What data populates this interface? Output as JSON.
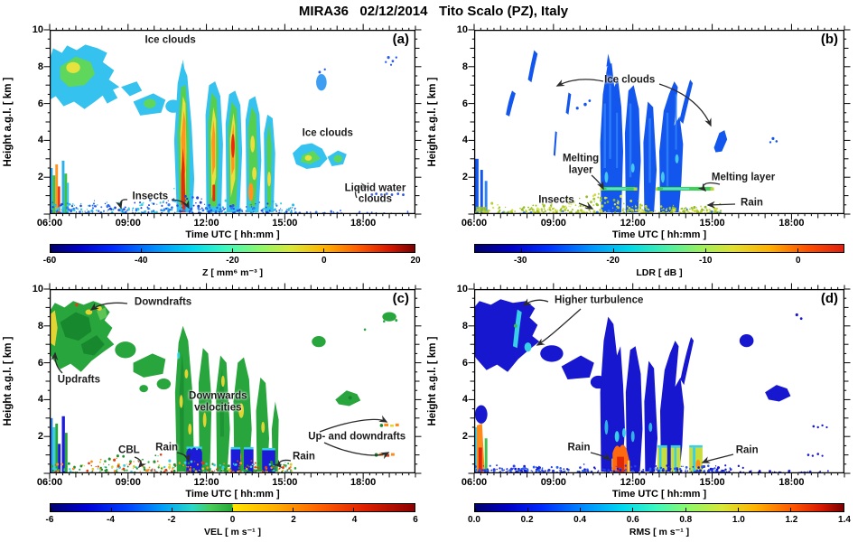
{
  "title": "MIRA36   02/12/2014   Tito Scalo (PZ), Italy",
  "chart_data": [
    {
      "panel": "(a)",
      "type": "heatmap",
      "variable": "radar reflectivity factor Z",
      "xlabel": "Time UTC [ hh:mm ]",
      "ylabel": "Height a.g.l. [ km ]",
      "x_ticks": [
        "06:00",
        "09:00",
        "12:00",
        "15:00",
        "18:00"
      ],
      "x_range_hours": [
        6,
        20
      ],
      "y_ticks": [
        "10",
        "8",
        "6",
        "4",
        "2"
      ],
      "y_range_km": [
        0,
        10
      ],
      "colorbar": {
        "label": "Z [ mm⁶ m⁻³ ]",
        "tick_labels": [
          "-60",
          "-40",
          "-20",
          "0",
          "20"
        ],
        "range": [
          -60,
          20
        ],
        "colormap": "jet"
      },
      "annotations": [
        "Ice clouds",
        "Ice clouds",
        "Insects",
        "Liquid water clouds"
      ],
      "features": [
        {
          "name": "ice clouds",
          "time_utc": "06:00-08:45",
          "height_km": [
            5.5,
            9.3
          ],
          "value_range": [
            -45,
            -15
          ]
        },
        {
          "name": "scattered ice cloud fragments",
          "time_utc": "08:45-10:50",
          "height_km": [
            4.5,
            7.0
          ],
          "value_range": [
            -45,
            -25
          ]
        },
        {
          "name": "deep precipitating cloud bands with strong cores",
          "time_utc": "10:50-14:45",
          "height_km": [
            0,
            8.0
          ],
          "value_range": [
            -40,
            15
          ]
        },
        {
          "name": "ice clouds",
          "time_utc": "15:15-17:30",
          "height_km": [
            3.0,
            5.2
          ],
          "value_range": [
            -45,
            -20
          ]
        },
        {
          "name": "insect layer",
          "time_utc": "06:00-15:15",
          "height_km": [
            0,
            0.9
          ],
          "value_range": [
            -58,
            -40
          ]
        },
        {
          "name": "liquid water clouds",
          "time_utc": "18:15-19:35",
          "height_km": [
            0.9,
            1.2
          ],
          "value_range": [
            -52,
            -42
          ]
        },
        {
          "name": "boundary-layer echoes",
          "time_utc": "06:00-06:40",
          "height_km": [
            0,
            2.8
          ],
          "value_range": [
            -45,
            0
          ]
        },
        {
          "name": "small high ice patches",
          "time_utc": "16:20-16:45 and 18:55-19:25",
          "height_km": [
            6.8,
            8.8
          ],
          "value_range": [
            -50,
            -35
          ]
        }
      ]
    },
    {
      "panel": "(b)",
      "type": "heatmap",
      "variable": "linear depolarization ratio LDR",
      "xlabel": "Time UTC [ hh:mm ]",
      "ylabel": "Height a.g.l. [ km ]",
      "x_ticks": [
        "06:00",
        "09:00",
        "12:00",
        "15:00",
        "18:00"
      ],
      "x_range_hours": [
        6,
        20
      ],
      "y_ticks": [
        "10",
        "8",
        "6",
        "4",
        "2"
      ],
      "y_range_km": [
        0,
        10
      ],
      "colorbar": {
        "label": "LDR [ dB ]",
        "tick_labels": [
          "-30",
          "-20",
          "-10",
          "0"
        ],
        "range": [
          -35,
          5
        ],
        "colormap": "jet"
      },
      "annotations": [
        "Ice clouds",
        "Melting layer",
        "Insects",
        "Melting layer",
        "Rain"
      ],
      "features": [
        {
          "name": "ice cloud streaks",
          "time_utc": "07:10-08:30",
          "height_km": [
            5.5,
            9.0
          ],
          "value_range": [
            -32,
            -25
          ]
        },
        {
          "name": "deep cloud and precipitation",
          "time_utc": "10:50-15:00",
          "height_km": [
            0,
            8.5
          ],
          "value_range": [
            -33,
            -25
          ]
        },
        {
          "name": "melting layer bright band",
          "time_utc": "11:00-12:05 and 13:00-15:00",
          "height_km": [
            1.2,
            1.5
          ],
          "value_range": [
            -20,
            -12
          ]
        },
        {
          "name": "insect layer",
          "time_utc": "06:00-15:15",
          "height_km": [
            0,
            0.7
          ],
          "value_range": [
            -14,
            -6
          ]
        },
        {
          "name": "rain below melting layer",
          "time_utc": "10:50-15:00",
          "height_km": [
            0,
            1.2
          ],
          "value_range": [
            -30,
            -25
          ]
        },
        {
          "name": "small ice patches",
          "time_utc": "15:25-15:55 and 17:15-17:35",
          "height_km": [
            3.4,
            4.8
          ],
          "value_range": [
            -30,
            -26
          ]
        }
      ]
    },
    {
      "panel": "(c)",
      "type": "heatmap",
      "variable": "Doppler velocity VEL",
      "xlabel": "Time UTC [ hh:mm ]",
      "ylabel": "Height a.g.l. [ km ]",
      "x_ticks": [
        "06:00",
        "09:00",
        "12:00",
        "15:00",
        "18:00"
      ],
      "x_range_hours": [
        6,
        20
      ],
      "y_ticks": [
        "10",
        "8",
        "6",
        "4",
        "2"
      ],
      "y_range_km": [
        0,
        10
      ],
      "colorbar": {
        "label": "VEL [ m s⁻¹ ]",
        "tick_labels": [
          "-6",
          "-4",
          "-2",
          "0",
          "2",
          "4",
          "6"
        ],
        "range": [
          -6,
          6
        ],
        "colormap": "jet-like, green below 0, orange above 0"
      },
      "annotations": [
        "Downdrafts",
        "Updrafts",
        "Downwards velocities",
        "CBL",
        "Rain",
        "Up- and downdrafts",
        "Rain"
      ],
      "features": [
        {
          "name": "downdrafts in ice cloud (green)",
          "time_utc": "06:00-08:45",
          "height_km": [
            5.5,
            9.3
          ],
          "value_range": [
            -2,
            -0.5
          ]
        },
        {
          "name": "updrafts at cloud edge (yellow)",
          "time_utc": "06:00-06:20",
          "height_km": [
            6.8,
            8.6
          ],
          "value_range": [
            0,
            1.5
          ]
        },
        {
          "name": "downwards velocities in cloud bands",
          "time_utc": "10:50-15:00",
          "height_km": [
            0,
            8.0
          ],
          "value_range": [
            -3,
            -0.5
          ]
        },
        {
          "name": "rain with strong fall velocities (blue)",
          "time_utc": "11:15-11:50 and 12:55-14:40",
          "height_km": [
            0,
            1.5
          ],
          "value_range": [
            -6,
            -4
          ]
        },
        {
          "name": "CBL convective plumes",
          "time_utc": "06:00-15:00",
          "height_km": [
            0,
            0.8
          ],
          "value_range": [
            -2,
            2
          ]
        },
        {
          "name": "up- and downdrafts in thin layers",
          "time_utc": "18:35-19:25",
          "height_km": [
            0.8,
            2.7
          ],
          "value_range": [
            -1,
            3
          ]
        }
      ]
    },
    {
      "panel": "(d)",
      "type": "heatmap",
      "variable": "Doppler spectral width RMS",
      "xlabel": "Time UTC [ hh:mm ]",
      "ylabel": "Height a.g.l. [ km ]",
      "x_ticks": [
        "06:00",
        "09:00",
        "12:00",
        "15:00",
        "18:00"
      ],
      "x_range_hours": [
        6,
        20
      ],
      "y_ticks": [
        "10",
        "8",
        "6",
        "4",
        "2"
      ],
      "y_range_km": [
        0,
        10
      ],
      "colorbar": {
        "label": "RMS [ m s⁻¹ ]",
        "tick_labels": [
          "0.0",
          "0.2",
          "0.4",
          "0.6",
          "0.8",
          "1.0",
          "1.2",
          "1.4"
        ],
        "range": [
          0,
          1.4
        ],
        "colormap": "jet"
      },
      "annotations": [
        "Higher turbulence",
        "Rain",
        "Rain"
      ],
      "features": [
        {
          "name": "cloud deck with low turbulence",
          "time_utc": "06:00-15:00",
          "height_km": [
            3,
            9.3
          ],
          "value_range": [
            0.05,
            0.3
          ]
        },
        {
          "name": "higher turbulence streaks",
          "time_utc": "07:20-08:10",
          "height_km": [
            6.8,
            9.2
          ],
          "value_range": [
            0.4,
            0.7
          ]
        },
        {
          "name": "rain with high spectral width",
          "time_utc": "11:15-11:50",
          "height_km": [
            0,
            1.6
          ],
          "value_range": [
            0.9,
            1.4
          ]
        },
        {
          "name": "rain columns",
          "time_utc": "12:55-14:45",
          "height_km": [
            0,
            1.2
          ],
          "value_range": [
            0.5,
            0.9
          ]
        },
        {
          "name": "morning boundary layer",
          "time_utc": "06:00-06:25",
          "height_km": [
            0,
            2.6
          ],
          "value_range": [
            0.8,
            1.3
          ]
        },
        {
          "name": "scattered clouds",
          "time_utc": "15:45-19:30",
          "height_km": [
            0.9,
            8.8
          ],
          "value_range": [
            0.05,
            0.3
          ]
        }
      ]
    }
  ]
}
